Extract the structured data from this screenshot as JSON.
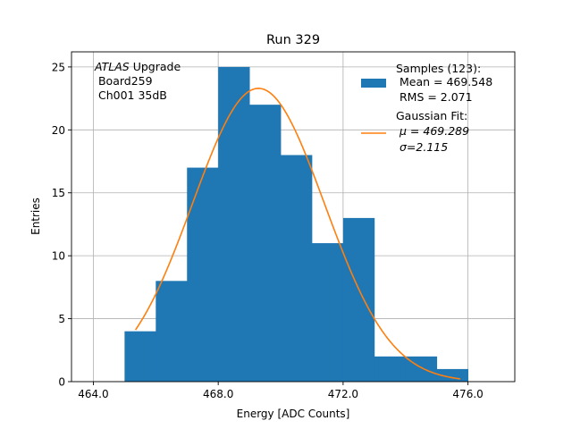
{
  "chart_data": {
    "type": "bar",
    "title": "Run 329",
    "xlabel": "Energy [ADC Counts]",
    "ylabel": "Entries",
    "xlim": [
      463.3,
      477.5
    ],
    "ylim": [
      0,
      26.2
    ],
    "xticks": [
      464.0,
      468.0,
      472.0,
      476.0
    ],
    "xtick_labels": [
      "464.0",
      "468.0",
      "472.0",
      "476.0"
    ],
    "yticks": [
      0,
      5,
      10,
      15,
      20,
      25
    ],
    "ytick_labels": [
      "0",
      "5",
      "10",
      "15",
      "20",
      "25"
    ],
    "grid": true,
    "bin_edges": [
      465,
      466,
      467,
      468,
      469,
      470,
      471,
      472,
      473,
      474,
      475,
      476
    ],
    "values": [
      4,
      8,
      17,
      25,
      22,
      18,
      11,
      13,
      2,
      2,
      1
    ],
    "bar_color": "#1f77b4",
    "fit_color": "#ff7f0e",
    "fit": {
      "mu": 469.289,
      "sigma": 2.115,
      "amplitude": 23.3,
      "x_range": [
        465.35,
        475.75
      ]
    },
    "annotation": {
      "line1_italic": "ATLAS",
      "line1_rest": " Upgrade",
      "line2": " Board259",
      "line3": " Ch001 35dB"
    },
    "legend": {
      "placement": "top-right",
      "hist_entry": [
        "Samples (123):",
        " Mean = 469.548",
        " RMS = 2.071"
      ],
      "fit_entry": [
        "Gaussian Fit:",
        "μ = 469.289",
        "σ=2.115"
      ]
    }
  }
}
